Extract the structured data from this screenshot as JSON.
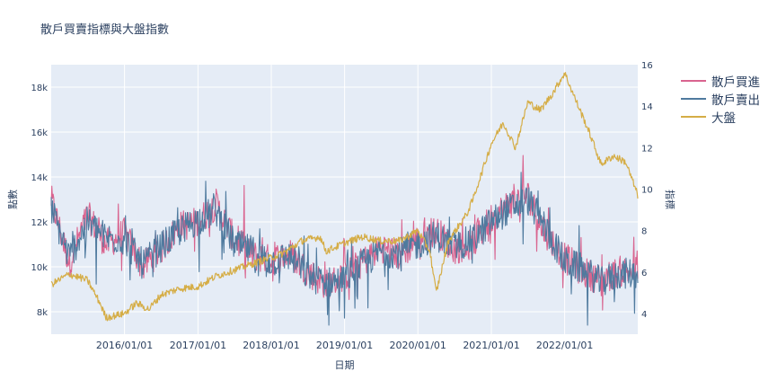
{
  "chart_data": {
    "type": "line",
    "title": "散戶買賣指標與大盤指數",
    "xlabel": "日期",
    "ylabel": "點數",
    "y2label": "指標",
    "x_range": [
      "2015-01-01",
      "2022-12-31"
    ],
    "xticks": [
      "2016/01/01",
      "2017/01/01",
      "2018/01/01",
      "2019/01/01",
      "2020/01/01",
      "2021/01/01",
      "2022/01/01"
    ],
    "ylim": [
      7000,
      19000
    ],
    "yticks": [
      8000,
      10000,
      12000,
      14000,
      16000,
      18000
    ],
    "ytick_labels": [
      "8k",
      "10k",
      "12k",
      "14k",
      "16k",
      "18k"
    ],
    "y2lim": [
      3,
      16
    ],
    "y2ticks": [
      4,
      6,
      8,
      10,
      12,
      14,
      16
    ],
    "y2tick_labels": [
      "4",
      "6",
      "8",
      "10",
      "12",
      "14",
      "16"
    ],
    "grid": true,
    "legend_position": "top-right",
    "series": [
      {
        "name": "散戶買進",
        "axis": "left",
        "color": "#d9648f",
        "points": [
          [
            "2015-01-01",
            13000
          ],
          [
            "2015-04-01",
            10200
          ],
          [
            "2015-07-01",
            12300
          ],
          [
            "2015-10-01",
            11000
          ],
          [
            "2016-01-01",
            11500
          ],
          [
            "2016-04-01",
            10000
          ],
          [
            "2016-07-01",
            10800
          ],
          [
            "2016-10-01",
            11800
          ],
          [
            "2017-01-01",
            12000
          ],
          [
            "2017-04-01",
            12800
          ],
          [
            "2017-07-01",
            11200
          ],
          [
            "2017-10-01",
            10500
          ],
          [
            "2018-01-01",
            10300
          ],
          [
            "2018-04-01",
            10600
          ],
          [
            "2018-07-01",
            9800
          ],
          [
            "2018-10-01",
            9200
          ],
          [
            "2019-01-01",
            9600
          ],
          [
            "2019-04-01",
            10200
          ],
          [
            "2019-07-01",
            10900
          ],
          [
            "2019-10-01",
            10500
          ],
          [
            "2020-01-01",
            11200
          ],
          [
            "2020-04-01",
            11600
          ],
          [
            "2020-07-01",
            10800
          ],
          [
            "2020-10-01",
            11000
          ],
          [
            "2021-01-01",
            12200
          ],
          [
            "2021-04-01",
            12800
          ],
          [
            "2021-07-01",
            13200
          ],
          [
            "2021-10-01",
            11500
          ],
          [
            "2022-01-01",
            10400
          ],
          [
            "2022-04-01",
            9800
          ],
          [
            "2022-07-01",
            9400
          ],
          [
            "2022-10-01",
            9800
          ]
        ]
      },
      {
        "name": "散戶賣出",
        "axis": "left",
        "color": "#4f7a9e",
        "points": [
          [
            "2015-01-01",
            12600
          ],
          [
            "2015-04-01",
            10400
          ],
          [
            "2015-07-01",
            12000
          ],
          [
            "2015-10-01",
            11300
          ],
          [
            "2016-01-01",
            11200
          ],
          [
            "2016-04-01",
            10100
          ],
          [
            "2016-07-01",
            10900
          ],
          [
            "2016-10-01",
            11600
          ],
          [
            "2017-01-01",
            12100
          ],
          [
            "2017-04-01",
            12500
          ],
          [
            "2017-07-01",
            11000
          ],
          [
            "2017-10-01",
            10700
          ],
          [
            "2018-01-01",
            10200
          ],
          [
            "2018-04-01",
            10500
          ],
          [
            "2018-07-01",
            9600
          ],
          [
            "2018-10-01",
            9300
          ],
          [
            "2019-01-01",
            9400
          ],
          [
            "2019-04-01",
            10100
          ],
          [
            "2019-07-01",
            10700
          ],
          [
            "2019-10-01",
            10600
          ],
          [
            "2020-01-01",
            11000
          ],
          [
            "2020-04-01",
            11400
          ],
          [
            "2020-07-01",
            10900
          ],
          [
            "2020-10-01",
            11200
          ],
          [
            "2021-01-01",
            12000
          ],
          [
            "2021-04-01",
            12600
          ],
          [
            "2021-07-01",
            13000
          ],
          [
            "2021-10-01",
            11700
          ],
          [
            "2022-01-01",
            10200
          ],
          [
            "2022-04-01",
            9900
          ],
          [
            "2022-07-01",
            9300
          ],
          [
            "2022-10-01",
            9700
          ]
        ]
      },
      {
        "name": "大盤",
        "axis": "right",
        "color": "#d5ad46",
        "points": [
          [
            "2015-01-01",
            5.4
          ],
          [
            "2015-04-01",
            5.9
          ],
          [
            "2015-07-01",
            5.6
          ],
          [
            "2015-09-01",
            4.5
          ],
          [
            "2015-10-01",
            3.8
          ],
          [
            "2016-01-01",
            4.0
          ],
          [
            "2016-03-01",
            4.5
          ],
          [
            "2016-05-01",
            4.2
          ],
          [
            "2016-07-01",
            4.9
          ],
          [
            "2016-10-01",
            5.2
          ],
          [
            "2017-01-01",
            5.3
          ],
          [
            "2017-04-01",
            5.8
          ],
          [
            "2017-07-01",
            6.1
          ],
          [
            "2017-10-01",
            6.4
          ],
          [
            "2018-01-01",
            6.7
          ],
          [
            "2018-03-01",
            6.9
          ],
          [
            "2018-06-01",
            7.5
          ],
          [
            "2018-09-01",
            7.7
          ],
          [
            "2018-10-01",
            7.0
          ],
          [
            "2019-01-01",
            7.4
          ],
          [
            "2019-04-01",
            7.7
          ],
          [
            "2019-07-01",
            7.5
          ],
          [
            "2019-10-01",
            7.5
          ],
          [
            "2020-01-01",
            8.0
          ],
          [
            "2020-03-01",
            7.0
          ],
          [
            "2020-04-01",
            5.0
          ],
          [
            "2020-06-01",
            7.5
          ],
          [
            "2020-09-01",
            8.8
          ],
          [
            "2020-10-01",
            9.5
          ],
          [
            "2021-01-01",
            12.2
          ],
          [
            "2021-03-01",
            13.2
          ],
          [
            "2021-05-01",
            12.0
          ],
          [
            "2021-07-01",
            14.2
          ],
          [
            "2021-09-01",
            13.8
          ],
          [
            "2021-11-01",
            14.6
          ],
          [
            "2022-01-01",
            15.6
          ],
          [
            "2022-03-01",
            14.2
          ],
          [
            "2022-05-01",
            12.8
          ],
          [
            "2022-07-01",
            11.2
          ],
          [
            "2022-09-01",
            11.6
          ],
          [
            "2022-11-01",
            11.3
          ],
          [
            "2022-12-31",
            9.7
          ]
        ]
      }
    ]
  }
}
